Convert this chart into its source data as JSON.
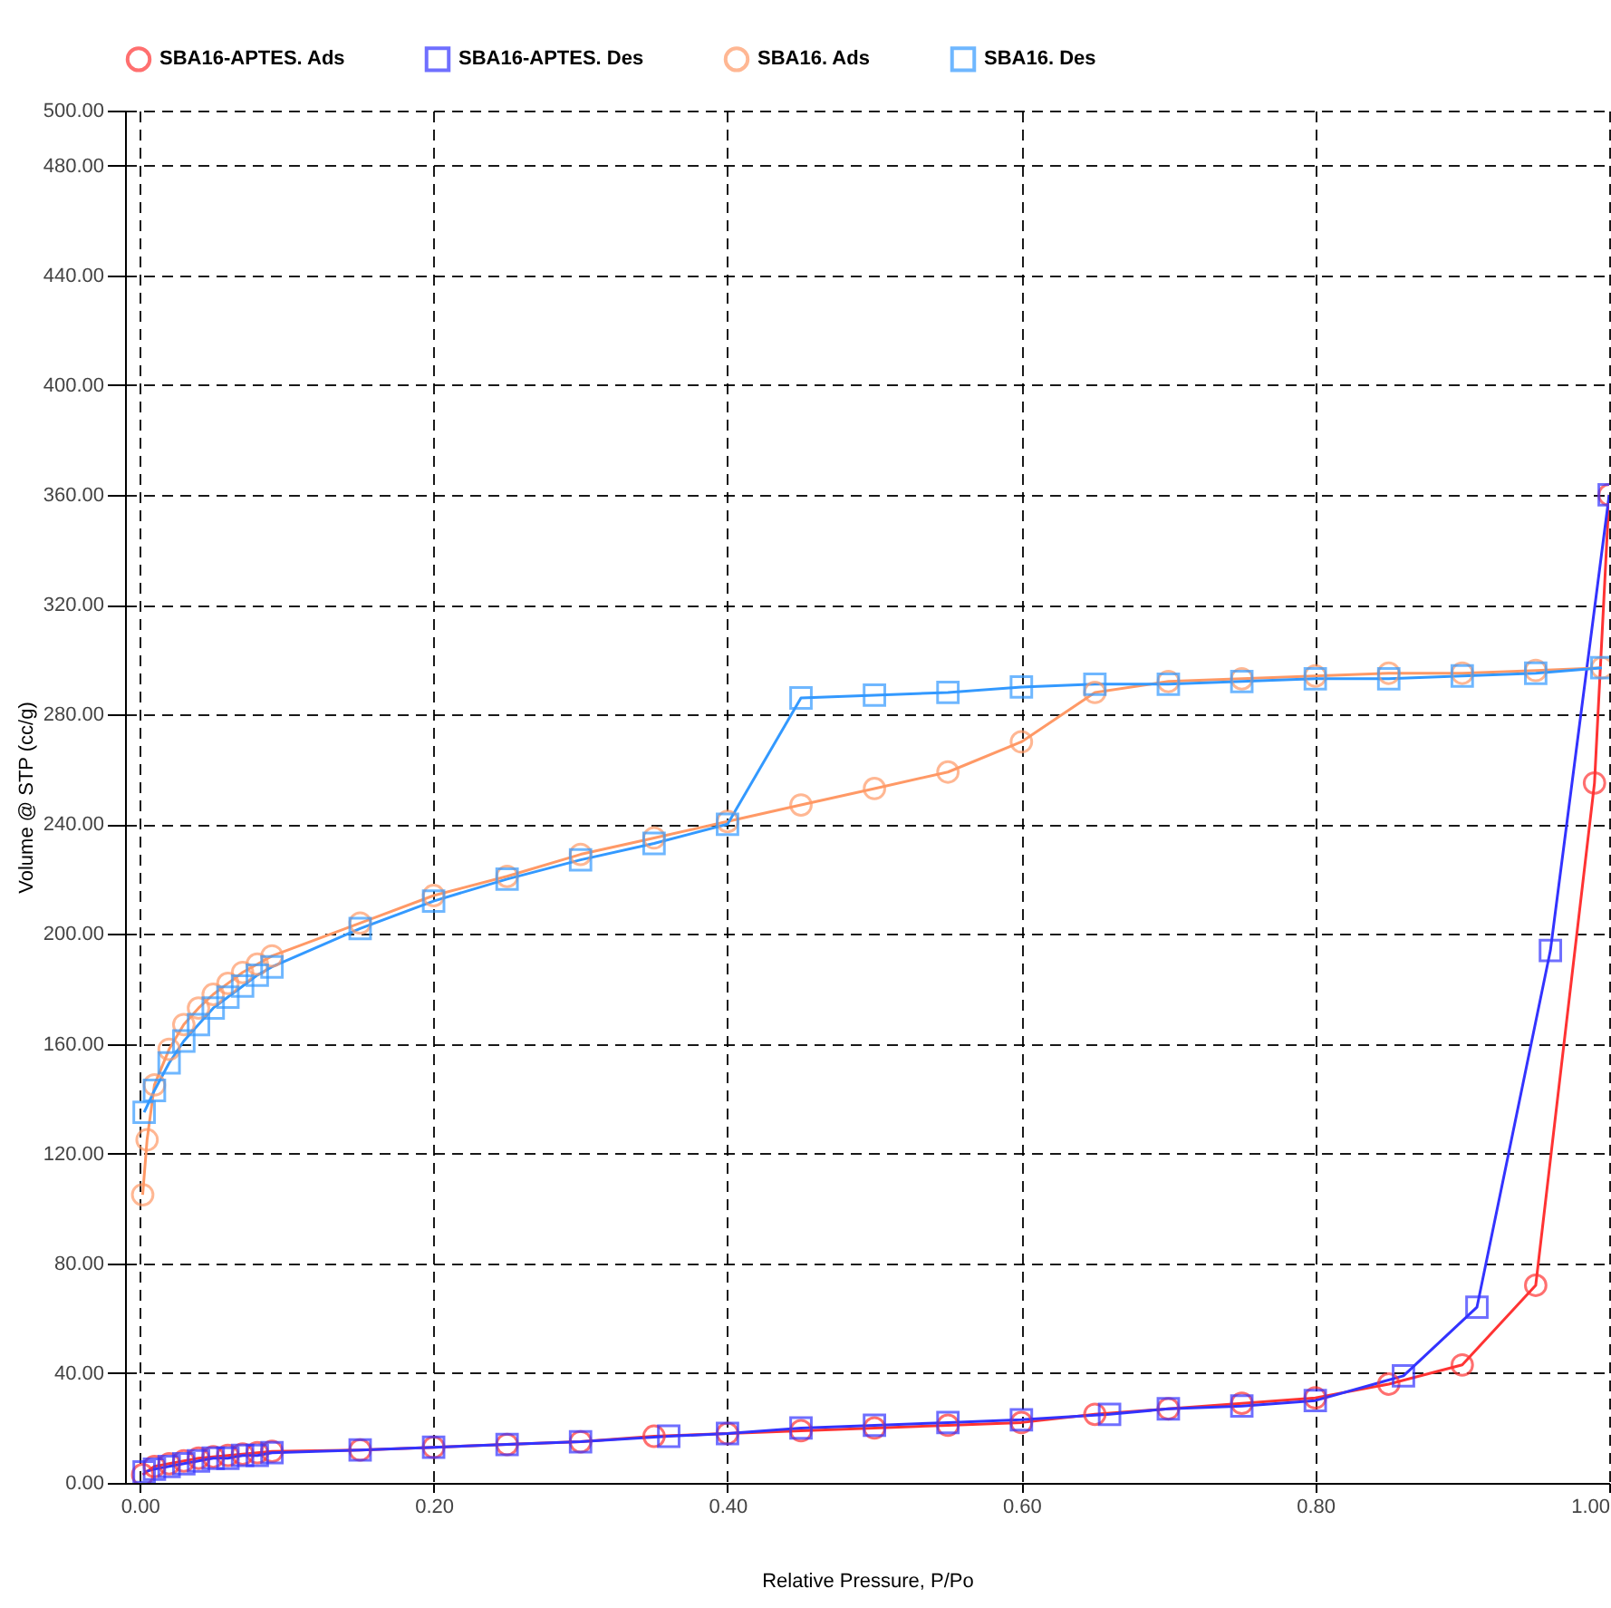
{
  "chart_data": {
    "type": "line",
    "xlabel": "Relative Pressure, P/Po",
    "ylabel": "Volume @ STP (cc/g)",
    "xlim": [
      -0.01,
      1.0
    ],
    "ylim": [
      0,
      500
    ],
    "xticks": [
      {
        "value": 0,
        "label": "0.00"
      },
      {
        "value": 0.2,
        "label": "0.20"
      },
      {
        "value": 0.4,
        "label": "0.40"
      },
      {
        "value": 0.6,
        "label": "0.60"
      },
      {
        "value": 0.8,
        "label": "0.80"
      },
      {
        "value": 1.0,
        "label": "1.00"
      }
    ],
    "yticks": [
      {
        "value": 0,
        "label": "0.00"
      },
      {
        "value": 40,
        "label": "40.00"
      },
      {
        "value": 80,
        "label": "80.00"
      },
      {
        "value": 120,
        "label": "120.00"
      },
      {
        "value": 160,
        "label": "160.00"
      },
      {
        "value": 200,
        "label": "200.00"
      },
      {
        "value": 240,
        "label": "240.00"
      },
      {
        "value": 280,
        "label": "280.00"
      },
      {
        "value": 320,
        "label": "320.00"
      },
      {
        "value": 360,
        "label": "360.00"
      },
      {
        "value": 400,
        "label": "400.00"
      },
      {
        "value": 440,
        "label": "440.00"
      },
      {
        "value": 480,
        "label": "480.00"
      },
      {
        "value": 500,
        "label": "500.00"
      }
    ],
    "grid": true,
    "legend": "top",
    "series": [
      {
        "name": "SBA16-APTES. Ads",
        "color": "#ff3333",
        "marker": "circle",
        "x": [
          0.002,
          0.01,
          0.02,
          0.03,
          0.04,
          0.05,
          0.06,
          0.07,
          0.08,
          0.09,
          0.15,
          0.2,
          0.25,
          0.3,
          0.35,
          0.4,
          0.45,
          0.5,
          0.55,
          0.6,
          0.65,
          0.7,
          0.75,
          0.8,
          0.85,
          0.9,
          0.95,
          0.99,
          1.0
        ],
        "values": [
          3,
          6,
          7,
          8,
          9,
          9.5,
          10,
          10.5,
          11,
          11.5,
          12,
          13,
          14,
          15,
          17,
          18,
          19,
          20,
          21,
          22,
          25,
          27,
          29,
          31,
          36,
          43,
          72,
          255,
          360
        ]
      },
      {
        "name": "SBA16-APTES. Des",
        "color": "#3333ff",
        "marker": "square",
        "x": [
          1.0,
          0.96,
          0.91,
          0.86,
          0.8,
          0.75,
          0.7,
          0.66,
          0.6,
          0.55,
          0.5,
          0.45,
          0.4,
          0.36,
          0.3,
          0.25,
          0.2,
          0.15,
          0.09,
          0.08,
          0.07,
          0.06,
          0.05,
          0.04,
          0.03,
          0.02,
          0.01,
          0.003
        ],
        "values": [
          360,
          194,
          64,
          39,
          30,
          28,
          27,
          25,
          23,
          22,
          21,
          20,
          18,
          17,
          15,
          14,
          13,
          12,
          11,
          10,
          10,
          9,
          9,
          8,
          7,
          6,
          5,
          4
        ]
      },
      {
        "name": "SBA16. Ads",
        "color": "#ff9966",
        "marker": "circle",
        "x": [
          0.002,
          0.005,
          0.01,
          0.02,
          0.03,
          0.04,
          0.05,
          0.06,
          0.07,
          0.08,
          0.09,
          0.15,
          0.2,
          0.25,
          0.3,
          0.35,
          0.4,
          0.45,
          0.5,
          0.55,
          0.6,
          0.65,
          0.7,
          0.75,
          0.8,
          0.85,
          0.9,
          0.95,
          0.995
        ],
        "values": [
          105,
          125,
          145,
          158,
          167,
          173,
          178,
          182,
          186,
          189,
          192,
          204,
          214,
          221,
          229,
          235,
          241,
          247,
          253,
          259,
          270,
          288,
          292,
          293,
          294,
          295,
          295,
          296,
          297
        ]
      },
      {
        "name": "SBA16. Des",
        "color": "#3399ff",
        "marker": "square",
        "x": [
          0.995,
          0.95,
          0.9,
          0.85,
          0.8,
          0.75,
          0.7,
          0.65,
          0.6,
          0.55,
          0.5,
          0.45,
          0.4,
          0.35,
          0.3,
          0.25,
          0.2,
          0.15,
          0.09,
          0.08,
          0.07,
          0.06,
          0.05,
          0.04,
          0.03,
          0.02,
          0.01,
          0.003
        ],
        "values": [
          297,
          295,
          294,
          293,
          293,
          292,
          291,
          291,
          290,
          288,
          287,
          286,
          240,
          233,
          227,
          220,
          212,
          202,
          188,
          185,
          181,
          177,
          173,
          167,
          161,
          153,
          143,
          135
        ]
      }
    ]
  }
}
